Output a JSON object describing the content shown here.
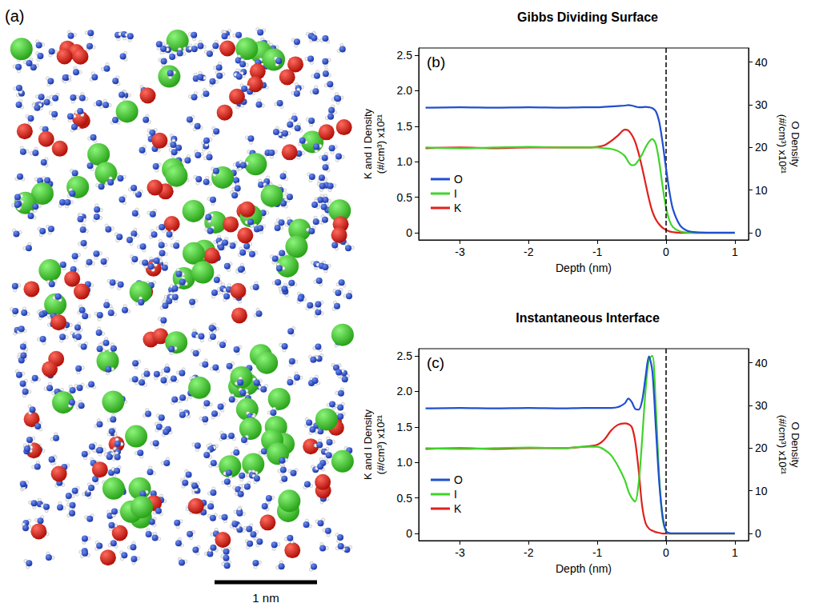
{
  "panel_a": {
    "label": "(a)",
    "scale_bar": "1 nm"
  },
  "chart_data": [
    {
      "type": "line",
      "panel_label": "(b)",
      "title": "Gibbs Dividing Surface",
      "x_label": "Depth (nm)",
      "y_label": "K and I Density (#/cm³) x10²¹",
      "y2_label": "O Density (#/cm³) x10²¹",
      "xlim": [
        -3.6,
        1.2
      ],
      "xticks": [
        -3,
        -2,
        -1,
        0,
        1
      ],
      "ylim": [
        -0.1,
        2.6
      ],
      "yticks": [
        0,
        0.5,
        {
          "value": 1,
          "label": "1.0"
        },
        1.5,
        {
          "value": 2,
          "label": "2.0"
        },
        2.5
      ],
      "y2lim": [
        -1.7,
        43.3
      ],
      "y2ticks": [
        0,
        10,
        20,
        30,
        40
      ],
      "grid": false,
      "legend": "lower left",
      "marker": "none",
      "reference_line": {
        "x": 0,
        "line_style": "dashed"
      },
      "x": [
        -3.5,
        -3,
        -2.5,
        -2,
        -1.5,
        -1.2,
        -1,
        -0.9,
        -0.8,
        -0.7,
        -0.6,
        -0.55,
        -0.5,
        -0.45,
        -0.4,
        -0.35,
        -0.3,
        -0.25,
        -0.2,
        -0.15,
        -0.1,
        -0.05,
        0,
        0.05,
        0.1,
        0.2,
        0.3,
        0.4,
        0.6,
        1
      ],
      "series": [
        {
          "name": "O",
          "color": "#1f4fd0",
          "axis": "y2",
          "values": [
            29.3,
            29.4,
            29.3,
            29.4,
            29.3,
            29.4,
            29.4,
            29.5,
            29.6,
            29.7,
            29.8,
            29.9,
            29.8,
            29.6,
            29.4,
            29.4,
            29.5,
            29.4,
            29.2,
            28.5,
            26,
            21,
            15,
            9.5,
            5.5,
            1.8,
            0.5,
            0.15,
            0.02,
            0
          ]
        },
        {
          "name": "I",
          "color": "#3fd42a",
          "axis": "y",
          "values": [
            1.2,
            1.19,
            1.2,
            1.21,
            1.2,
            1.2,
            1.2,
            1.19,
            1.18,
            1.15,
            1.08,
            1.0,
            0.95,
            0.96,
            1.02,
            1.1,
            1.2,
            1.28,
            1.32,
            1.25,
            1.0,
            0.65,
            0.35,
            0.17,
            0.08,
            0.02,
            0.005,
            0,
            0,
            0
          ]
        },
        {
          "name": "K",
          "color": "#e0201b",
          "axis": "y",
          "values": [
            1.19,
            1.2,
            1.19,
            1.2,
            1.2,
            1.2,
            1.21,
            1.23,
            1.29,
            1.37,
            1.45,
            1.44,
            1.38,
            1.28,
            1.12,
            0.92,
            0.7,
            0.48,
            0.3,
            0.19,
            0.12,
            0.07,
            0.04,
            0.02,
            0.01,
            0,
            0,
            0,
            0,
            0
          ]
        }
      ]
    },
    {
      "type": "line",
      "panel_label": "(c)",
      "title": "Instantaneous Interface",
      "x_label": "Depth (nm)",
      "y_label": "K and I Density (#/cm³) x10²¹",
      "y2_label": "O Density (#/cm³) x10²¹",
      "xlim": [
        -3.6,
        1.2
      ],
      "xticks": [
        -3,
        -2,
        -1,
        0,
        1
      ],
      "ylim": [
        -0.1,
        2.6
      ],
      "yticks": [
        0,
        0.5,
        {
          "value": 1,
          "label": "1.0"
        },
        1.5,
        {
          "value": 2,
          "label": "2.0"
        },
        2.5
      ],
      "y2lim": [
        -1.7,
        43.3
      ],
      "y2ticks": [
        0,
        10,
        20,
        30,
        40
      ],
      "grid": false,
      "legend": "lower left",
      "marker": "none",
      "reference_line": {
        "x": 0,
        "line_style": "dashed"
      },
      "x": [
        -3.5,
        -3,
        -2.5,
        -2,
        -1.5,
        -1.2,
        -1,
        -0.9,
        -0.8,
        -0.7,
        -0.6,
        -0.55,
        -0.5,
        -0.45,
        -0.4,
        -0.35,
        -0.3,
        -0.25,
        -0.2,
        -0.15,
        -0.1,
        -0.05,
        0,
        0.05,
        0.1,
        0.2,
        0.3,
        0.4,
        0.6,
        1
      ],
      "series": [
        {
          "name": "O",
          "color": "#1f4fd0",
          "axis": "y2",
          "values": [
            29.3,
            29.4,
            29.3,
            29.4,
            29.3,
            29.4,
            29.4,
            29.4,
            29.4,
            29.6,
            30.5,
            31.6,
            30.8,
            29.2,
            29.0,
            31,
            36.5,
            41.5,
            38,
            25,
            12,
            4,
            0.5,
            0.05,
            0,
            0,
            0,
            0,
            0,
            0
          ]
        },
        {
          "name": "I",
          "color": "#3fd42a",
          "axis": "y",
          "values": [
            1.2,
            1.19,
            1.2,
            1.21,
            1.2,
            1.22,
            1.22,
            1.18,
            1.1,
            0.95,
            0.75,
            0.6,
            0.5,
            0.45,
            0.7,
            1.3,
            2.0,
            2.45,
            2.5,
            1.8,
            0.8,
            0.2,
            0.03,
            0,
            0,
            0,
            0,
            0,
            0,
            0
          ]
        },
        {
          "name": "K",
          "color": "#e0201b",
          "axis": "y",
          "values": [
            1.19,
            1.2,
            1.19,
            1.2,
            1.2,
            1.22,
            1.25,
            1.32,
            1.45,
            1.53,
            1.55,
            1.54,
            1.5,
            1.3,
            0.9,
            0.4,
            0.15,
            0.07,
            0.04,
            0.02,
            0.01,
            0,
            0,
            0,
            0,
            0,
            0,
            0,
            0,
            0
          ]
        }
      ]
    }
  ]
}
